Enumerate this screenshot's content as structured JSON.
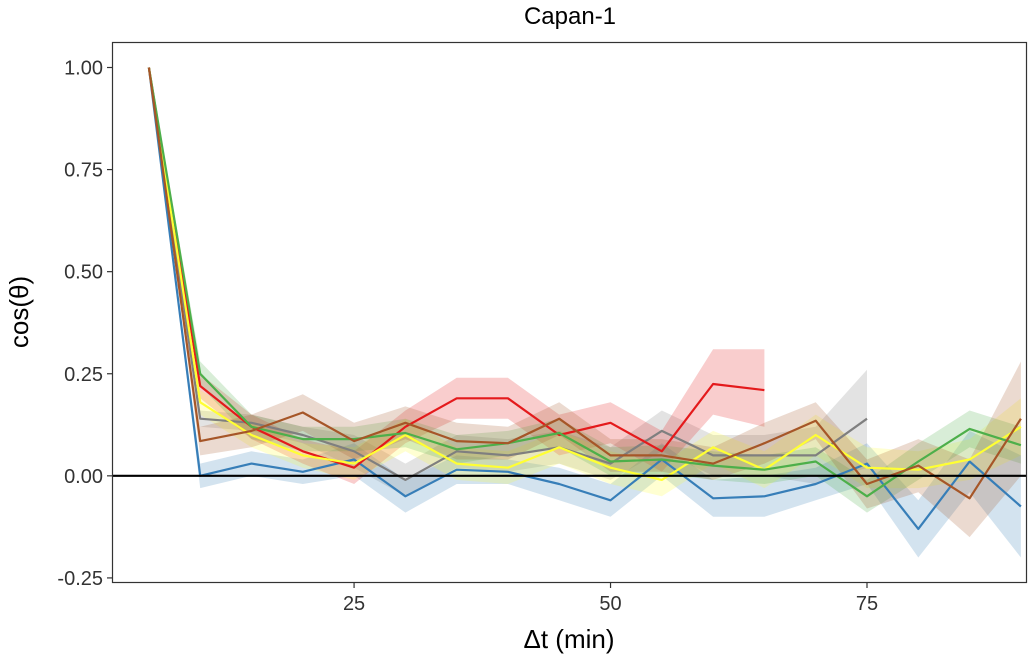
{
  "chart_data": {
    "type": "line",
    "title": "Capan-1",
    "xlabel": "Δt (min)",
    "ylabel": "cos(θ)",
    "xlim": [
      1.5,
      90.5
    ],
    "ylim": [
      -0.26,
      1.06
    ],
    "x_ticks": [
      25,
      50,
      75
    ],
    "x_tick_labels": [
      "25",
      "50",
      "75"
    ],
    "y_ticks": [
      -0.25,
      0,
      0.25,
      0.5,
      0.75,
      1.0
    ],
    "y_tick_labels": [
      "-0.25",
      "0.00",
      "0.25",
      "0.50",
      "0.75",
      "1.00"
    ],
    "reference_line": 0,
    "grid": false,
    "legend": "none",
    "series": [
      {
        "color": "#7f7f7f",
        "x": [
          5,
          10,
          15,
          20,
          25,
          30,
          35,
          40,
          45,
          50,
          55,
          60,
          65,
          70,
          75
        ],
        "values": [
          1.0,
          0.14,
          0.13,
          0.1,
          0.06,
          -0.01,
          0.06,
          0.05,
          0.07,
          0.03,
          0.11,
          0.05,
          0.05,
          0.05,
          0.14
        ],
        "lower": [
          1.0,
          0.12,
          0.11,
          0.08,
          0.02,
          -0.05,
          0.02,
          0.01,
          0.03,
          -0.01,
          0.06,
          0.0,
          0.0,
          -0.02,
          0.02
        ],
        "upper": [
          1.0,
          0.16,
          0.15,
          0.12,
          0.1,
          0.03,
          0.1,
          0.09,
          0.11,
          0.07,
          0.16,
          0.1,
          0.1,
          0.12,
          0.26
        ]
      },
      {
        "color": "#377eb8",
        "x": [
          5,
          10,
          15,
          20,
          25,
          30,
          35,
          40,
          45,
          50,
          55,
          60,
          65,
          70,
          75,
          80,
          85,
          90
        ],
        "values": [
          1.0,
          0.0,
          0.03,
          0.01,
          0.04,
          -0.05,
          0.015,
          0.01,
          -0.02,
          -0.06,
          0.04,
          -0.055,
          -0.05,
          -0.02,
          0.03,
          -0.13,
          0.035,
          -0.075
        ],
        "lower": [
          1.0,
          -0.03,
          0.0,
          -0.02,
          0.0,
          -0.09,
          -0.02,
          -0.02,
          -0.06,
          -0.1,
          0.0,
          -0.1,
          -0.1,
          -0.06,
          -0.02,
          -0.2,
          -0.04,
          -0.2
        ],
        "upper": [
          1.0,
          0.03,
          0.06,
          0.04,
          0.08,
          -0.01,
          0.05,
          0.04,
          0.02,
          -0.02,
          0.08,
          -0.01,
          0.0,
          0.02,
          0.08,
          -0.06,
          0.11,
          0.05
        ]
      },
      {
        "color": "#e41a1c",
        "x": [
          5,
          10,
          15,
          20,
          25,
          30,
          35,
          40,
          45,
          50,
          55,
          60,
          65
        ],
        "values": [
          1.0,
          0.22,
          0.12,
          0.06,
          0.02,
          0.12,
          0.19,
          0.19,
          0.1,
          0.13,
          0.06,
          0.225,
          0.21
        ],
        "lower": [
          1.0,
          0.19,
          0.09,
          0.03,
          -0.02,
          0.08,
          0.14,
          0.14,
          0.05,
          0.08,
          0.01,
          0.15,
          0.12
        ],
        "upper": [
          1.0,
          0.25,
          0.15,
          0.09,
          0.06,
          0.16,
          0.24,
          0.24,
          0.15,
          0.18,
          0.11,
          0.31,
          0.31
        ]
      },
      {
        "color": "#ffff33",
        "x": [
          5,
          10,
          15,
          20,
          25,
          30,
          35,
          40,
          45,
          50,
          55,
          60,
          65,
          70,
          75,
          80,
          85,
          90
        ],
        "values": [
          1.0,
          0.18,
          0.1,
          0.05,
          0.03,
          0.1,
          0.03,
          0.02,
          0.07,
          0.02,
          -0.01,
          0.07,
          0.015,
          0.1,
          0.02,
          0.015,
          0.04,
          0.12
        ],
        "lower": [
          1.0,
          0.15,
          0.07,
          0.02,
          -0.01,
          0.06,
          -0.01,
          -0.02,
          0.03,
          -0.02,
          -0.05,
          0.03,
          -0.03,
          0.05,
          -0.03,
          -0.03,
          -0.01,
          0.05
        ],
        "upper": [
          1.0,
          0.21,
          0.13,
          0.08,
          0.07,
          0.14,
          0.07,
          0.06,
          0.11,
          0.06,
          0.03,
          0.11,
          0.06,
          0.15,
          0.07,
          0.06,
          0.09,
          0.19
        ]
      },
      {
        "color": "#4daf4a",
        "x": [
          5,
          10,
          15,
          20,
          25,
          30,
          35,
          40,
          45,
          50,
          55,
          60,
          65,
          70,
          75,
          80,
          85,
          90
        ],
        "values": [
          1.0,
          0.25,
          0.12,
          0.09,
          0.09,
          0.105,
          0.065,
          0.08,
          0.105,
          0.035,
          0.04,
          0.025,
          0.015,
          0.035,
          -0.05,
          0.035,
          0.115,
          0.075
        ],
        "lower": [
          1.0,
          0.22,
          0.09,
          0.06,
          0.06,
          0.07,
          0.03,
          0.05,
          0.07,
          0.0,
          0.005,
          -0.01,
          -0.02,
          0.0,
          -0.09,
          -0.01,
          0.07,
          0.03
        ],
        "upper": [
          1.0,
          0.28,
          0.15,
          0.12,
          0.12,
          0.14,
          0.1,
          0.11,
          0.14,
          0.07,
          0.075,
          0.06,
          0.05,
          0.07,
          -0.01,
          0.08,
          0.16,
          0.12
        ]
      },
      {
        "color": "#a65628",
        "x": [
          5,
          10,
          15,
          20,
          25,
          30,
          35,
          40,
          45,
          50,
          55,
          60,
          65,
          70,
          75,
          80,
          85,
          90
        ],
        "values": [
          1.0,
          0.085,
          0.11,
          0.155,
          0.085,
          0.13,
          0.085,
          0.08,
          0.14,
          0.05,
          0.05,
          0.03,
          0.08,
          0.135,
          -0.02,
          0.025,
          -0.055,
          0.14
        ],
        "lower": [
          1.0,
          0.05,
          0.07,
          0.11,
          0.04,
          0.09,
          0.04,
          0.04,
          0.1,
          0.01,
          0.01,
          -0.01,
          0.03,
          0.09,
          -0.08,
          -0.04,
          -0.15,
          0.0
        ],
        "upper": [
          1.0,
          0.12,
          0.15,
          0.2,
          0.13,
          0.17,
          0.13,
          0.12,
          0.18,
          0.09,
          0.09,
          0.07,
          0.13,
          0.18,
          0.04,
          0.09,
          0.04,
          0.28
        ]
      }
    ]
  }
}
